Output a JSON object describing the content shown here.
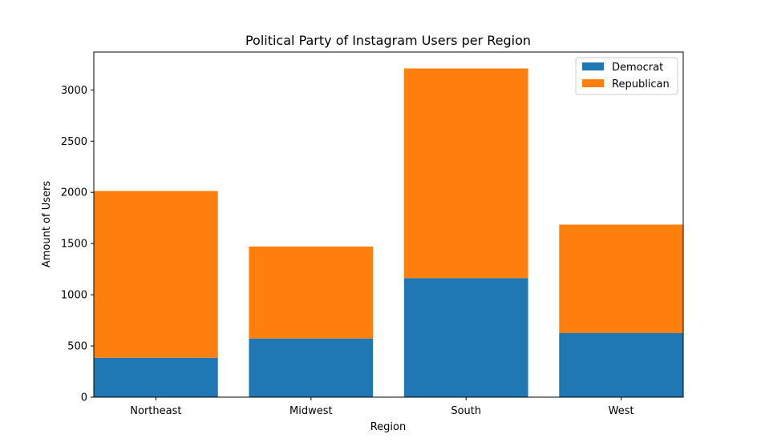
{
  "chart_data": {
    "type": "bar",
    "stacked": true,
    "title": "Political Party of Instagram Users per Region",
    "xlabel": "Region",
    "ylabel": "Amount of Users",
    "categories": [
      "Northeast",
      "Midwest",
      "South",
      "West"
    ],
    "series": [
      {
        "name": "Democrat",
        "values": [
          385,
          573,
          1163,
          626
        ],
        "color": "#1f77b4"
      },
      {
        "name": "Republican",
        "values": [
          1628,
          898,
          2047,
          1059
        ],
        "color": "#ff7f0e"
      }
    ],
    "ylim": [
      0,
      3370
    ],
    "yticks": [
      0,
      500,
      1000,
      1500,
      2000,
      2500,
      3000
    ],
    "grid": false,
    "legend_position": "top-right"
  }
}
